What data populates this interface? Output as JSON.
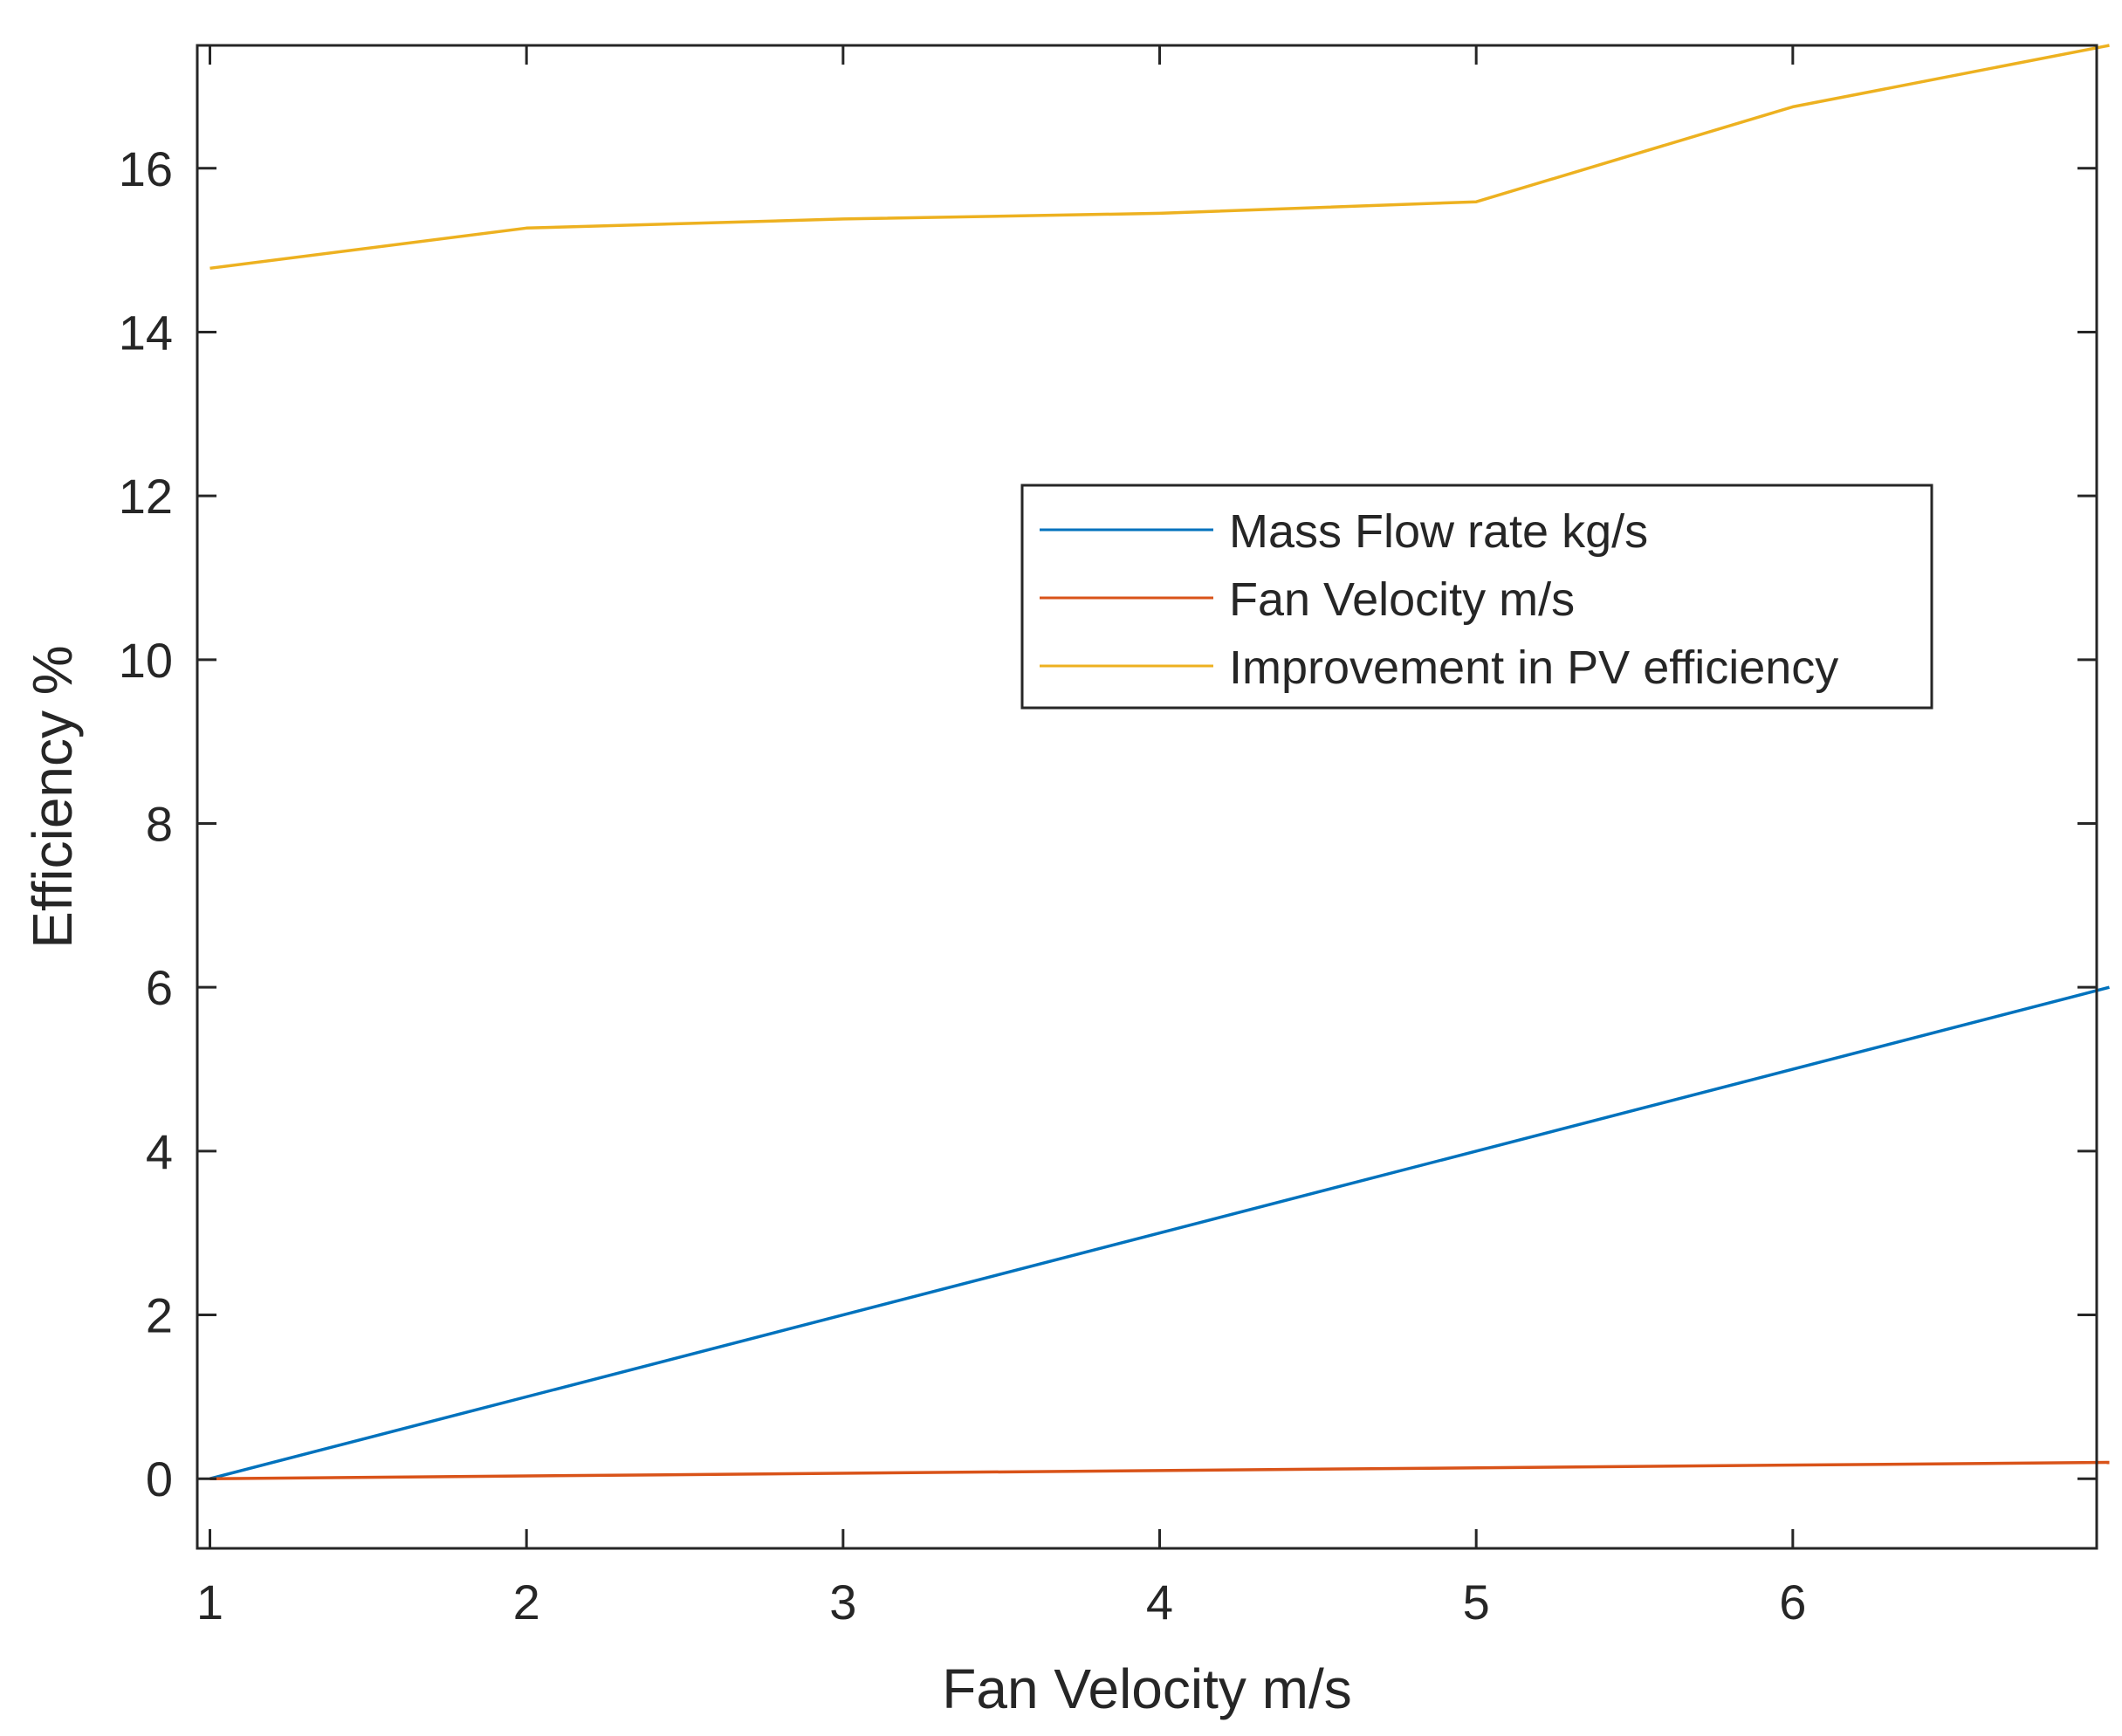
{
  "chart_data": {
    "type": "line",
    "title": "",
    "xlabel": "Fan Velocity m/s",
    "ylabel": "Efficiency %",
    "xlim": [
      0.96,
      6.96
    ],
    "ylim": [
      -0.85,
      17.5
    ],
    "grid": false,
    "legend_position": "right-center",
    "x_ticks": [
      1,
      2,
      3,
      4,
      5,
      6
    ],
    "y_ticks": [
      0,
      2,
      4,
      6,
      8,
      10,
      12,
      14,
      16
    ],
    "x": [
      1,
      2,
      3,
      4,
      5,
      6,
      7
    ],
    "series": [
      {
        "name": "Mass Flow rate kg/s",
        "color": "#0072BD",
        "x": [
          1,
          7
        ],
        "values": [
          0,
          6
        ]
      },
      {
        "name": "Fan Velocity m/s",
        "color": "#D95319",
        "x": [
          1,
          7
        ],
        "values": [
          0,
          0.2
        ]
      },
      {
        "name": "Improvement in PV efficiency",
        "color": "#EDB120",
        "x": [
          1,
          2,
          3,
          4,
          5,
          6,
          7
        ],
        "values": [
          14.78,
          15.27,
          15.38,
          15.45,
          15.59,
          16.75,
          17.5
        ]
      }
    ]
  }
}
